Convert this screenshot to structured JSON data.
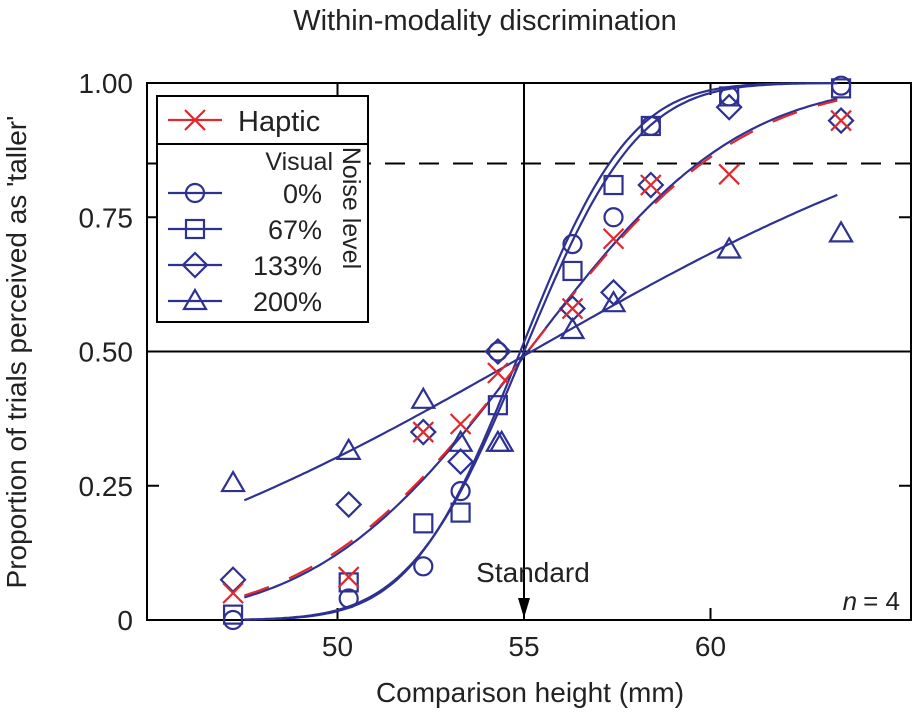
{
  "chart_data": {
    "type": "scatter",
    "title": "Within-modality discrimination",
    "xlabel": "Comparison height (mm)",
    "ylabel": "Proportion of trials perceived as 'taller'",
    "xlim": [
      45,
      65.5
    ],
    "ylim": [
      0,
      1
    ],
    "xticks": [
      50,
      55,
      60
    ],
    "yticks": [
      0,
      0.25,
      0.5,
      0.75,
      1.0
    ],
    "ytick_labels": [
      "0",
      "0.25",
      "0.50",
      "0.75",
      "1.00"
    ],
    "grid": false,
    "reference_lines": {
      "horizontal": [
        0.5
      ],
      "dashed_horizontal": [
        0.85
      ],
      "vertical": [
        55
      ]
    },
    "annotations": {
      "standard": "Standard",
      "n_label": "n",
      "n_value": "= 4"
    },
    "legend": {
      "placement": "top-left",
      "group_header": "Visual",
      "side_label": "Noise level"
    },
    "x": [
      47.2,
      50.3,
      52.3,
      53.3,
      54.3,
      56.3,
      57.4,
      58.4,
      60.5,
      63.5
    ],
    "series": [
      {
        "name": "Haptic",
        "marker": "x",
        "color": "#e0282e",
        "line": "dashed",
        "values": [
          0.05,
          0.08,
          0.35,
          0.365,
          0.46,
          0.58,
          0.71,
          0.81,
          0.83,
          0.93
        ],
        "fit": {
          "mu": 55.1,
          "sigma": 4.5
        }
      },
      {
        "name": "0%",
        "marker": "circle",
        "color": "#2e3192",
        "line": "solid",
        "values": [
          0.0,
          0.04,
          0.1,
          0.24,
          0.5,
          0.7,
          0.75,
          0.92,
          0.975,
          0.995
        ],
        "fit": {
          "mu": 55.0,
          "sigma": 2.4
        }
      },
      {
        "name": "67%",
        "marker": "square",
        "color": "#2e3192",
        "line": "solid",
        "values": [
          0.01,
          0.07,
          0.18,
          0.2,
          0.4,
          0.65,
          0.81,
          0.92,
          0.975,
          0.99
        ],
        "fit": {
          "mu": 54.9,
          "sigma": 2.3
        }
      },
      {
        "name": "133%",
        "marker": "diamond",
        "color": "#2e3192",
        "line": "solid",
        "values": [
          0.075,
          0.215,
          0.35,
          0.295,
          0.5,
          0.58,
          0.61,
          0.81,
          0.955,
          0.93
        ],
        "fit": {
          "mu": 55.1,
          "sigma": 4.4
        }
      },
      {
        "name": "200%",
        "marker": "triangle",
        "color": "#2e3192",
        "line": "solid",
        "values": [
          0.255,
          0.315,
          0.41,
          0.33,
          0.33,
          0.54,
          0.59,
          null,
          0.69,
          0.72
        ],
        "fit": {
          "mu": 55.2,
          "sigma": 10.1
        }
      }
    ],
    "extra_points": [
      {
        "series": "200%",
        "x": 54.4,
        "y": 0.33
      }
    ]
  }
}
